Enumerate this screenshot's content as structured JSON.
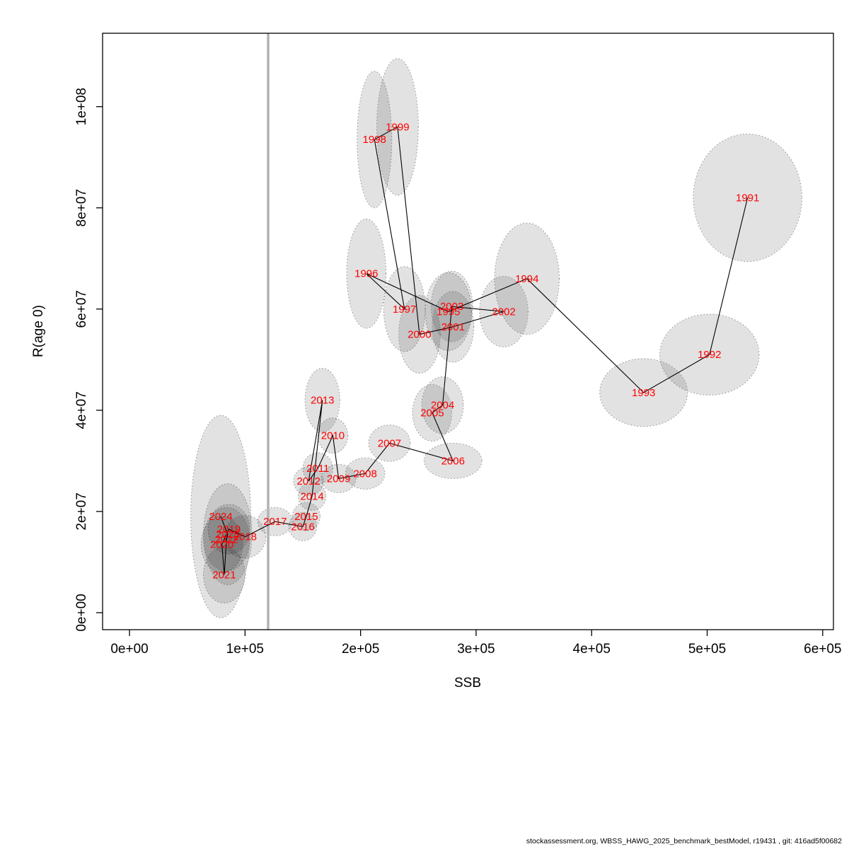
{
  "footer": {
    "text": "stockassessment.org, WBSS_HAWG_2025_benchmark_bestModel, r19431 , git: 416ad5f00682"
  },
  "chart_data": {
    "type": "scatter",
    "title": "",
    "xlabel": "SSB",
    "ylabel": "R(age 0)",
    "xlim": [
      -23300,
      609300
    ],
    "ylim": [
      -3360000,
      114500000
    ],
    "grid": false,
    "legend": "none",
    "x_ticks": [
      {
        "value": 0,
        "label": "0e+00"
      },
      {
        "value": 100000,
        "label": "1e+05"
      },
      {
        "value": 200000,
        "label": "2e+05"
      },
      {
        "value": 300000,
        "label": "3e+05"
      },
      {
        "value": 400000,
        "label": "4e+05"
      },
      {
        "value": 500000,
        "label": "5e+05"
      },
      {
        "value": 600000,
        "label": "6e+05"
      }
    ],
    "y_ticks": [
      {
        "value": 0,
        "label": "0e+00"
      },
      {
        "value": 20000000,
        "label": "2e+07"
      },
      {
        "value": 40000000,
        "label": "4e+07"
      },
      {
        "value": 60000000,
        "label": "6e+07"
      },
      {
        "value": 80000000,
        "label": "8e+07"
      },
      {
        "value": 100000000,
        "label": "1e+08"
      }
    ],
    "reference_line_x": 120000,
    "colors": {
      "year_label": "#ff0000",
      "ellipse_fill": "rgba(0,0,0,0.115)",
      "ellipse_stroke": "#8f8f8f",
      "track_line": "#000000",
      "reference_line": "#b3b3b3",
      "axis": "#000000"
    },
    "points": [
      {
        "year": "1991",
        "ssb": 535000,
        "rec": 82000000,
        "sd_ssb": 47000,
        "sd_rec": 12600000
      },
      {
        "year": "1992",
        "ssb": 502000,
        "rec": 51000000,
        "sd_ssb": 43000,
        "sd_rec": 8000000
      },
      {
        "year": "1993",
        "ssb": 445000,
        "rec": 43500000,
        "sd_ssb": 38000,
        "sd_rec": 6700000
      },
      {
        "year": "1994",
        "ssb": 344000,
        "rec": 66000000,
        "sd_ssb": 28000,
        "sd_rec": 11000000
      },
      {
        "year": "1995",
        "ssb": 276000,
        "rec": 59500000,
        "sd_ssb": 20000,
        "sd_rec": 7700000
      },
      {
        "year": "1996",
        "ssb": 205000,
        "rec": 67000000,
        "sd_ssb": 17000,
        "sd_rec": 10800000
      },
      {
        "year": "1997",
        "ssb": 238000,
        "rec": 60000000,
        "sd_ssb": 18000,
        "sd_rec": 8400000
      },
      {
        "year": "1998",
        "ssb": 212000,
        "rec": 93500000,
        "sd_ssb": 15000,
        "sd_rec": 13500000
      },
      {
        "year": "1999",
        "ssb": 232000,
        "rec": 96000000,
        "sd_ssb": 18000,
        "sd_rec": 13500000
      },
      {
        "year": "2000",
        "ssb": 251000,
        "rec": 55000000,
        "sd_ssb": 18000,
        "sd_rec": 7700000
      },
      {
        "year": "2001",
        "ssb": 280000,
        "rec": 56500000,
        "sd_ssb": 18000,
        "sd_rec": 7000000
      },
      {
        "year": "2002",
        "ssb": 324000,
        "rec": 59500000,
        "sd_ssb": 21000,
        "sd_rec": 7000000
      },
      {
        "year": "2003",
        "ssb": 279000,
        "rec": 60500000,
        "sd_ssb": 18000,
        "sd_rec": 7000000
      },
      {
        "year": "2004",
        "ssb": 271000,
        "rec": 41000000,
        "sd_ssb": 18000,
        "sd_rec": 5600000
      },
      {
        "year": "2005",
        "ssb": 262000,
        "rec": 39500000,
        "sd_ssb": 17000,
        "sd_rec": 5600000
      },
      {
        "year": "2006",
        "ssb": 280000,
        "rec": 30000000,
        "sd_ssb": 25000,
        "sd_rec": 3500000
      },
      {
        "year": "2007",
        "ssb": 225000,
        "rec": 33500000,
        "sd_ssb": 18000,
        "sd_rec": 3600000
      },
      {
        "year": "2008",
        "ssb": 204000,
        "rec": 27500000,
        "sd_ssb": 17000,
        "sd_rec": 3100000
      },
      {
        "year": "2009",
        "ssb": 181000,
        "rec": 26500000,
        "sd_ssb": 15000,
        "sd_rec": 2800000
      },
      {
        "year": "2010",
        "ssb": 176000,
        "rec": 35000000,
        "sd_ssb": 13000,
        "sd_rec": 3500000
      },
      {
        "year": "2011",
        "ssb": 163000,
        "rec": 28500000,
        "sd_ssb": 13000,
        "sd_rec": 3100000
      },
      {
        "year": "2012",
        "ssb": 155000,
        "rec": 26000000,
        "sd_ssb": 13000,
        "sd_rec": 2800000
      },
      {
        "year": "2013",
        "ssb": 167000,
        "rec": 42000000,
        "sd_ssb": 15000,
        "sd_rec": 6300000
      },
      {
        "year": "2014",
        "ssb": 158000,
        "rec": 23000000,
        "sd_ssb": 12000,
        "sd_rec": 2800000
      },
      {
        "year": "2015",
        "ssb": 153000,
        "rec": 19000000,
        "sd_ssb": 12000,
        "sd_rec": 2800000
      },
      {
        "year": "2016",
        "ssb": 150000,
        "rec": 17000000,
        "sd_ssb": 12000,
        "sd_rec": 2800000
      },
      {
        "year": "2017",
        "ssb": 126000,
        "rec": 18000000,
        "sd_ssb": 15000,
        "sd_rec": 2800000
      },
      {
        "year": "2018",
        "ssb": 100000,
        "rec": 15000000,
        "sd_ssb": 18000,
        "sd_rec": 4200000
      },
      {
        "year": "2019",
        "ssb": 86000,
        "rec": 16500000,
        "sd_ssb": 18000,
        "sd_rec": 4900000
      },
      {
        "year": "2020",
        "ssb": 80000,
        "rec": 13500000,
        "sd_ssb": 18000,
        "sd_rec": 5600000
      },
      {
        "year": "2021",
        "ssb": 82000,
        "rec": 7500000,
        "sd_ssb": 18000,
        "sd_rec": 5600000
      },
      {
        "year": "2022",
        "ssb": 84000,
        "rec": 14500000,
        "sd_ssb": 20000,
        "sd_rec": 6300000
      },
      {
        "year": "2023",
        "ssb": 85000,
        "rec": 15500000,
        "sd_ssb": 21000,
        "sd_rec": 10000000
      },
      {
        "year": "2024",
        "ssb": 79000,
        "rec": 19000000,
        "sd_ssb": 26000,
        "sd_rec": 20000000
      }
    ]
  }
}
